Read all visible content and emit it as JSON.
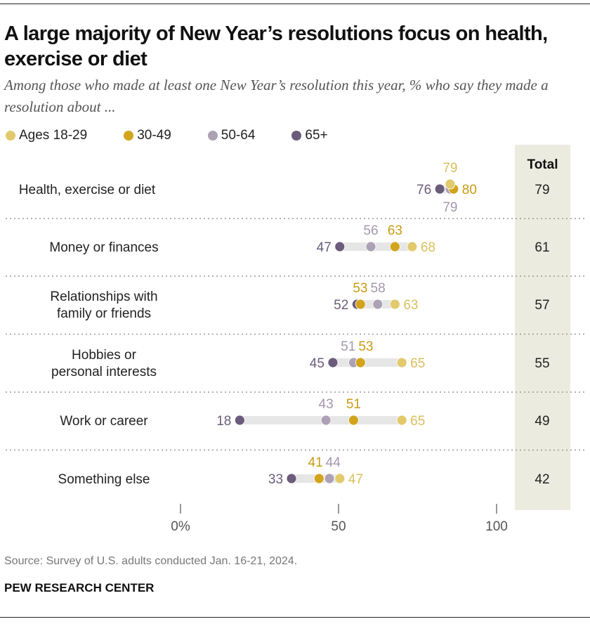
{
  "title": "A large majority of New Year’s resolutions focus on health, exercise or diet",
  "subtitle": "Among those who made at least one New Year’s resolution this year, % who say they made a resolution about ...",
  "source": "Source: Survey of U.S. adults conducted Jan. 16-21, 2024.",
  "brand": "PEW RESEARCH CENTER",
  "total_header": "Total",
  "chart_data": {
    "type": "dot",
    "xlim": [
      0,
      100
    ],
    "x_ticks": [
      0,
      50,
      100
    ],
    "x_tick_labels": [
      "0%",
      "50",
      "100"
    ],
    "legend_placement": "top-left",
    "series": [
      {
        "name": "Ages 18-29",
        "color": "#e2c96b",
        "values": [
          79,
          68,
          63,
          65,
          65,
          47
        ]
      },
      {
        "name": "30-49",
        "color": "#d2a41c",
        "values": [
          80,
          63,
          53,
          53,
          51,
          41
        ]
      },
      {
        "name": "50-64",
        "color": "#ada1b6",
        "values": [
          79,
          56,
          58,
          51,
          43,
          44
        ]
      },
      {
        "name": "65+",
        "color": "#6b5c7b",
        "values": [
          76,
          47,
          52,
          45,
          18,
          33
        ]
      }
    ],
    "categories": [
      [
        "Health, exercise or diet"
      ],
      [
        "Money or finances"
      ],
      [
        "Relationships with",
        "family or friends"
      ],
      [
        "Hobbies or",
        "personal interests"
      ],
      [
        "Work or career"
      ],
      [
        "Something else"
      ]
    ],
    "totals": [
      79,
      61,
      57,
      55,
      49,
      42
    ]
  }
}
